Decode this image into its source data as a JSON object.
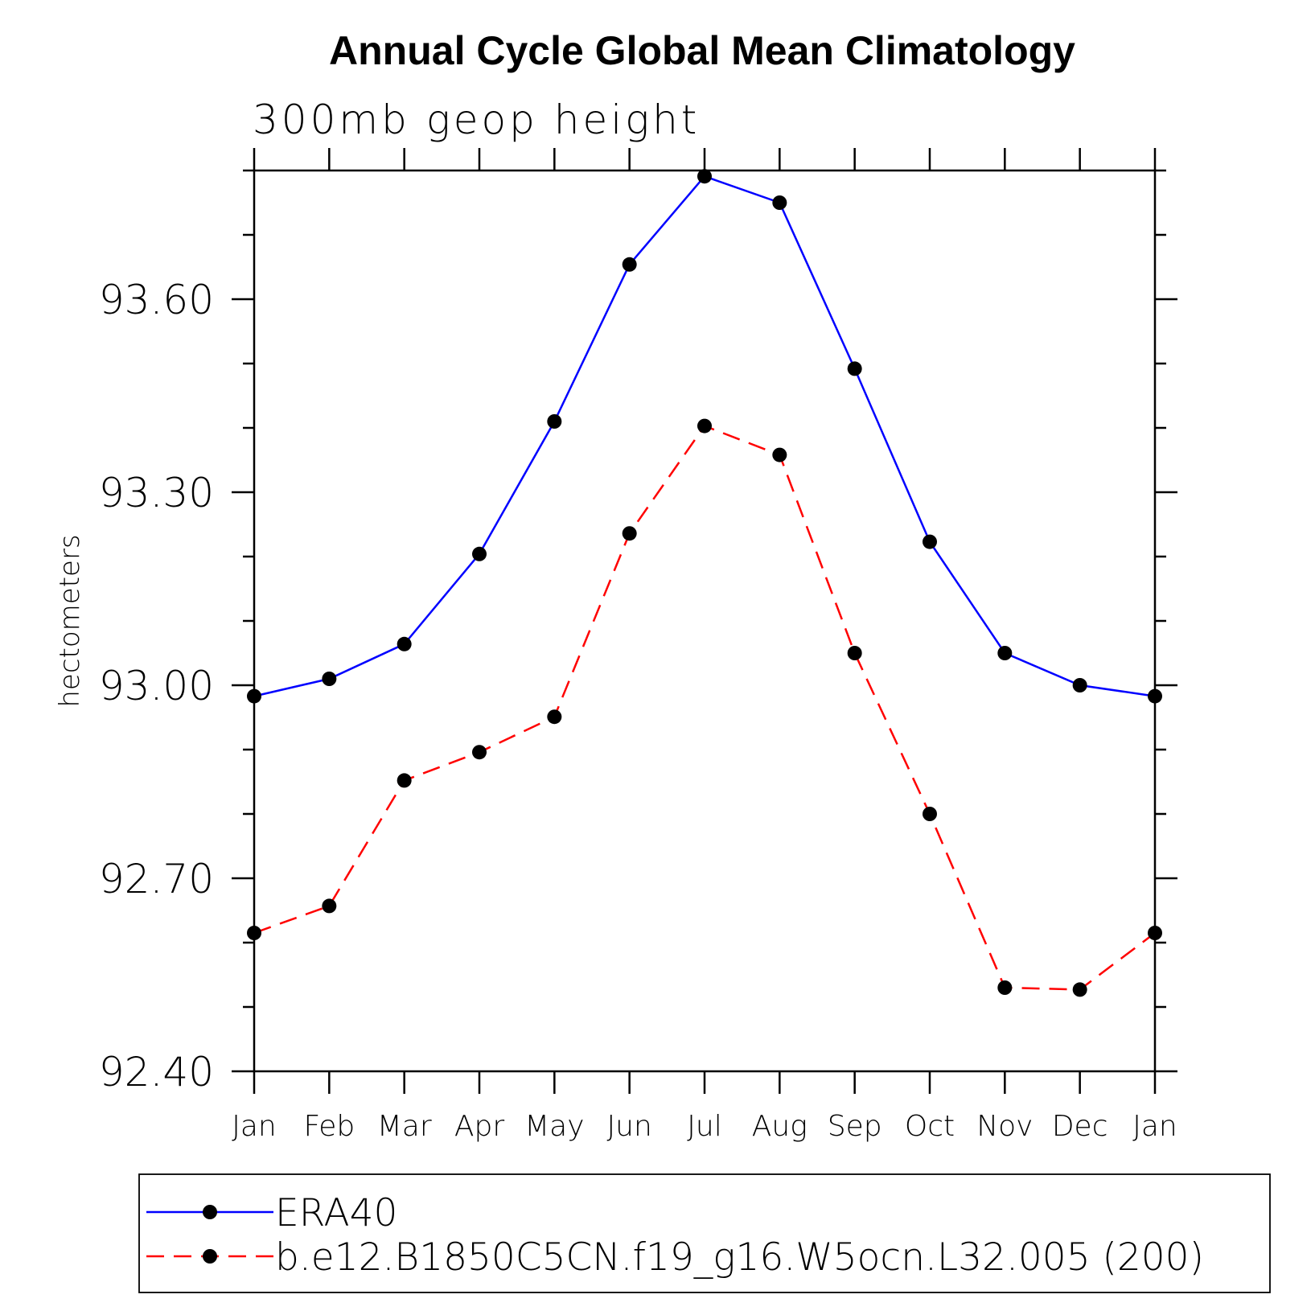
{
  "chart_data": {
    "type": "line",
    "title": "Annual Cycle Global Mean Climatology",
    "subtitle": "300mb geop height",
    "ylabel": "hectometers",
    "xlabel": "",
    "categories": [
      "Jan",
      "Feb",
      "Mar",
      "Apr",
      "May",
      "Jun",
      "Jul",
      "Aug",
      "Sep",
      "Oct",
      "Nov",
      "Dec",
      "Jan"
    ],
    "ylim": [
      92.4,
      93.8
    ],
    "yticks_major": [
      "92.40",
      "92.70",
      "93.00",
      "93.30",
      "93.60"
    ],
    "ytick_major_values": [
      92.4,
      92.7,
      93.0,
      93.3,
      93.6
    ],
    "ytick_minor_step": 0.1,
    "grid": false,
    "legend_position": "bottom",
    "series": [
      {
        "name": "ERA40",
        "color": "#0000ff",
        "style": "solid",
        "values": [
          92.983,
          93.01,
          93.064,
          93.204,
          93.41,
          93.654,
          93.791,
          93.75,
          93.492,
          93.223,
          93.05,
          93.0,
          92.983
        ]
      },
      {
        "name": "b.e12.B1850C5CN.f19_g16.W5ocn.L32.005 (200)",
        "color": "#ff0000",
        "style": "dashed",
        "values": [
          92.615,
          92.657,
          92.852,
          92.896,
          92.951,
          93.236,
          93.403,
          93.358,
          93.05,
          92.8,
          92.53,
          92.527,
          92.615
        ]
      }
    ]
  }
}
